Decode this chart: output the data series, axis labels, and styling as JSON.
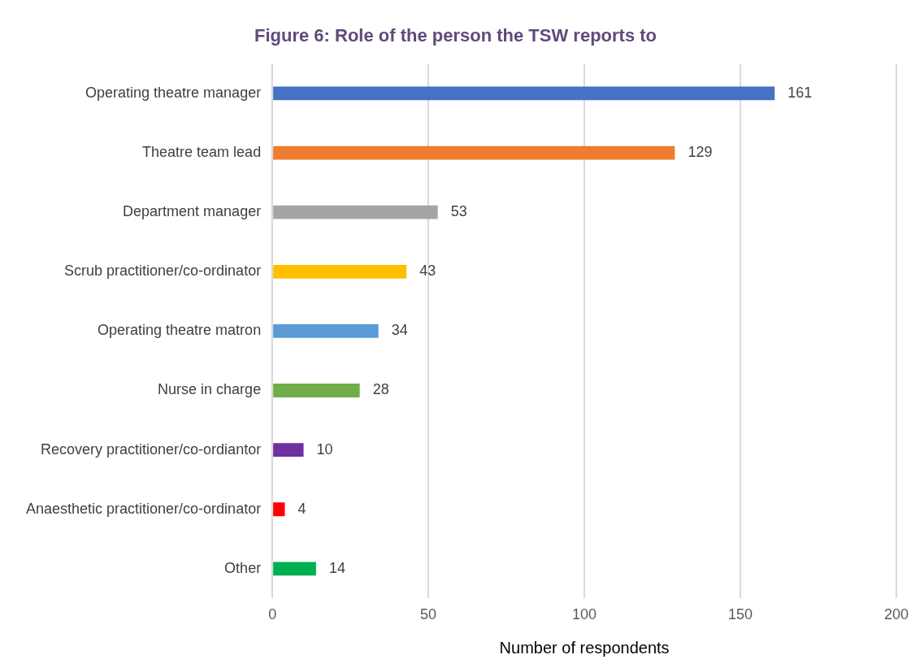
{
  "chart_data": {
    "type": "bar",
    "orientation": "horizontal",
    "title": "Figure 6: Role of the person the TSW reports to",
    "xlabel": "Number of respondents",
    "categories": [
      "Operating theatre manager",
      "Theatre team lead",
      "Department manager",
      "Scrub practitioner/co-ordinator",
      "Operating theatre matron",
      "Nurse in charge",
      "Recovery practitioner/co-ordiantor",
      "Anaesthetic practitioner/co-ordinator",
      "Other"
    ],
    "values": [
      161,
      129,
      53,
      43,
      34,
      28,
      10,
      4,
      14
    ],
    "colors": [
      "#4472c4",
      "#ed7d31",
      "#a5a5a5",
      "#ffc000",
      "#5b9bd5",
      "#70ad47",
      "#7030a0",
      "#ff0000",
      "#00b050"
    ],
    "xlim": [
      0,
      200
    ],
    "xticks": [
      0,
      50,
      100,
      150,
      200
    ],
    "grid": "x",
    "data_labels": true
  }
}
